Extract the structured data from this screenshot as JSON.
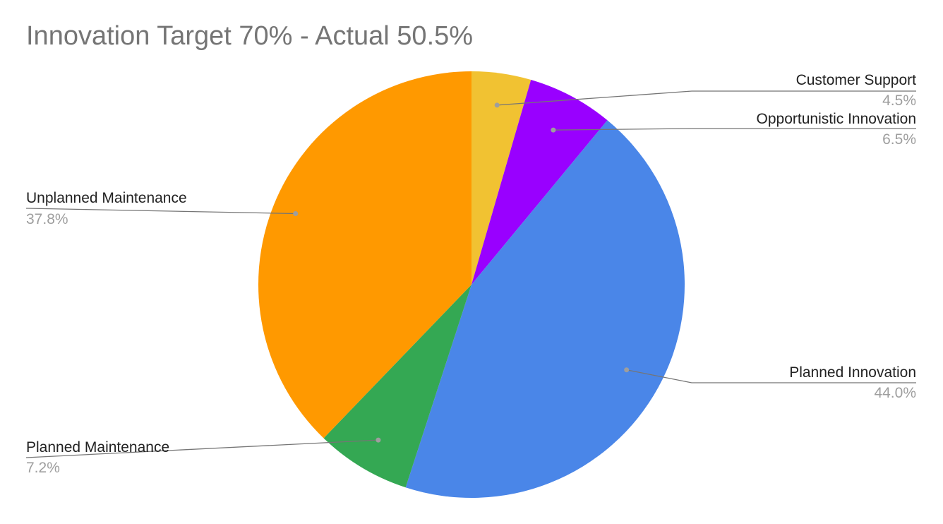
{
  "chart_data": {
    "type": "pie",
    "title": "Innovation Target 70% - Actual 50.5%",
    "start_angle_deg": 0,
    "direction": "clockwise",
    "legend": "labeled slices",
    "slices": [
      {
        "label": "Customer Support",
        "value": 4.5,
        "value_label": "4.5%",
        "color": "#f1c232"
      },
      {
        "label": "Opportunistic Innovation",
        "value": 6.5,
        "value_label": "6.5%",
        "color": "#9900ff"
      },
      {
        "label": "Planned Innovation",
        "value": 44.0,
        "value_label": "44.0%",
        "color": "#4a86e8"
      },
      {
        "label": "Planned Maintenance",
        "value": 7.2,
        "value_label": "7.2%",
        "color": "#34a853"
      },
      {
        "label": "Unplanned Maintenance",
        "value": 37.8,
        "value_label": "37.8%",
        "color": "#ff9900"
      }
    ]
  }
}
